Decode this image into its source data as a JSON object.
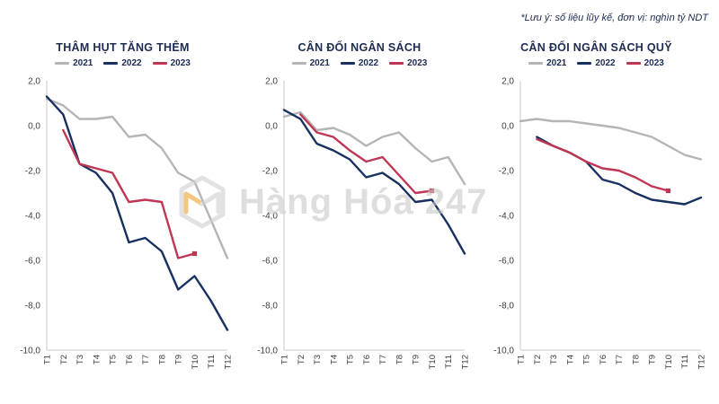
{
  "note": "*Lưu ý: số liệu lũy kế, đơn vị: nghìn tỷ NDT",
  "watermark": {
    "text": "Hàng Hóa 247",
    "logo": "cube-hexagon-logo",
    "logo_accent_color": "#f0a12c",
    "logo_gray_color": "#cfcfcf"
  },
  "colors": {
    "series_2021": "#b5b5b5",
    "series_2022": "#17305f",
    "series_2023": "#bf3755",
    "title_text": "#1e2b52",
    "axis_line": "#c8c8c8",
    "tick_text": "#3c3c3c"
  },
  "chart_data": [
    {
      "type": "line",
      "title": "THÂM HỤT TĂNG THÊM",
      "categories": [
        "T1",
        "T2",
        "T3",
        "T4",
        "T5",
        "T6",
        "T7",
        "T8",
        "T9",
        "T10",
        "T11",
        "T12"
      ],
      "ylim": [
        -10,
        2
      ],
      "y_ticks": [
        2,
        0,
        -2,
        -4,
        -6,
        -8,
        -10
      ],
      "y_tick_labels": [
        "2,0",
        "0,0",
        "-2,0",
        "-4,0",
        "-6,0",
        "-8,0",
        "-10,0"
      ],
      "grid": false,
      "legend_position": "top",
      "series": [
        {
          "name": "2021",
          "color": "#b5b5b5",
          "end_marker": false,
          "values": [
            1.2,
            0.9,
            0.3,
            0.3,
            0.4,
            -0.5,
            -0.4,
            -1.0,
            -2.1,
            -2.5,
            -4.2,
            -5.9
          ]
        },
        {
          "name": "2022",
          "color": "#17305f",
          "end_marker": false,
          "values": [
            1.3,
            0.5,
            -1.7,
            -2.1,
            -3.0,
            -5.2,
            -5.0,
            -5.6,
            -7.3,
            -6.7,
            -7.8,
            -9.1
          ]
        },
        {
          "name": "2023",
          "color": "#bf3755",
          "end_marker": true,
          "values": [
            null,
            -0.2,
            -1.7,
            -1.9,
            -2.1,
            -3.4,
            -3.3,
            -3.4,
            -5.9,
            -5.7,
            null,
            null
          ]
        }
      ]
    },
    {
      "type": "line",
      "title": "CÂN ĐỐI NGÂN SÁCH",
      "categories": [
        "T1",
        "T2",
        "T3",
        "T4",
        "T5",
        "T6",
        "T7",
        "T8",
        "T9",
        "T10",
        "T11",
        "T12"
      ],
      "ylim": [
        -10,
        2
      ],
      "y_ticks": [
        2,
        0,
        -2,
        -4,
        -6,
        -8,
        -10
      ],
      "y_tick_labels": [
        "2,0",
        "0,0",
        "-2,0",
        "-4,0",
        "-6,0",
        "-8,0",
        "-10,0"
      ],
      "grid": false,
      "legend_position": "top",
      "series": [
        {
          "name": "2021",
          "color": "#b5b5b5",
          "end_marker": false,
          "values": [
            0.4,
            0.6,
            -0.2,
            -0.1,
            -0.4,
            -0.9,
            -0.5,
            -0.3,
            -1.0,
            -1.6,
            -1.4,
            -2.6
          ]
        },
        {
          "name": "2022",
          "color": "#17305f",
          "end_marker": false,
          "values": [
            0.7,
            0.3,
            -0.8,
            -1.1,
            -1.5,
            -2.3,
            -2.1,
            -2.6,
            -3.4,
            -3.3,
            -4.4,
            -5.7
          ]
        },
        {
          "name": "2023",
          "color": "#bf3755",
          "end_marker": true,
          "values": [
            null,
            0.5,
            -0.3,
            -0.5,
            -1.1,
            -1.6,
            -1.4,
            -2.2,
            -3.0,
            -2.9,
            null,
            null
          ]
        }
      ]
    },
    {
      "type": "line",
      "title": "CÂN ĐỐI NGÂN SÁCH QUỸ",
      "categories": [
        "T1",
        "T2",
        "T3",
        "T4",
        "T5",
        "T6",
        "T7",
        "T8",
        "T9",
        "T10",
        "T11",
        "T12"
      ],
      "ylim": [
        -10,
        2
      ],
      "y_ticks": [
        2,
        0,
        -2,
        -4,
        -6,
        -8,
        -10
      ],
      "y_tick_labels": [
        "2,0",
        "0,0",
        "-2,0",
        "-4,0",
        "-6,0",
        "-8,0",
        "-10,0"
      ],
      "grid": false,
      "legend_position": "top",
      "series": [
        {
          "name": "2021",
          "color": "#b5b5b5",
          "end_marker": false,
          "values": [
            0.2,
            0.3,
            0.2,
            0.2,
            0.1,
            0.0,
            -0.1,
            -0.3,
            -0.5,
            -0.9,
            -1.3,
            -1.5
          ]
        },
        {
          "name": "2022",
          "color": "#17305f",
          "end_marker": false,
          "values": [
            null,
            -0.5,
            -0.9,
            -1.2,
            -1.6,
            -2.4,
            -2.6,
            -3.0,
            -3.3,
            -3.4,
            -3.5,
            -3.2
          ]
        },
        {
          "name": "2023",
          "color": "#bf3755",
          "end_marker": true,
          "values": [
            null,
            -0.6,
            -0.9,
            -1.2,
            -1.6,
            -1.9,
            -2.0,
            -2.3,
            -2.7,
            -2.9,
            null,
            null
          ]
        }
      ]
    }
  ]
}
